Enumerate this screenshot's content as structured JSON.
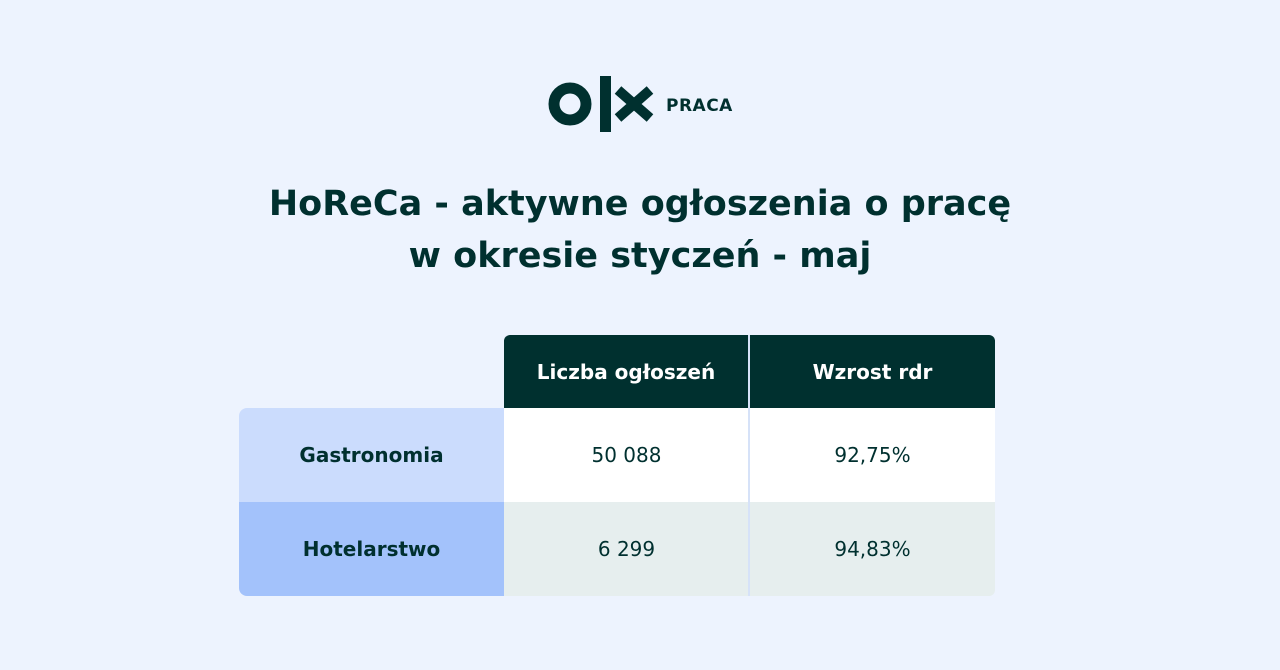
{
  "logo": {
    "brand_icon": "olx-logo",
    "subtitle": "PRACA"
  },
  "title": {
    "line1": "HoReCa - aktywne ogłoszenia o pracę",
    "line2": "w okresie styczeń - maj"
  },
  "table": {
    "headers": [
      "Liczba ogłoszeń",
      "Wzrost rdr"
    ],
    "rows": [
      {
        "label": "Gastronomia",
        "count": "50 088",
        "growth": "92,75%"
      },
      {
        "label": "Hotelarstwo",
        "count": "6 299",
        "growth": "94,83%"
      }
    ]
  },
  "colors": {
    "background": "#edf3fe",
    "dark": "#00302f",
    "row1_label": "#cbdcfd",
    "row2_label": "#a3c2fb",
    "row2_cell": "#e6eeee"
  }
}
